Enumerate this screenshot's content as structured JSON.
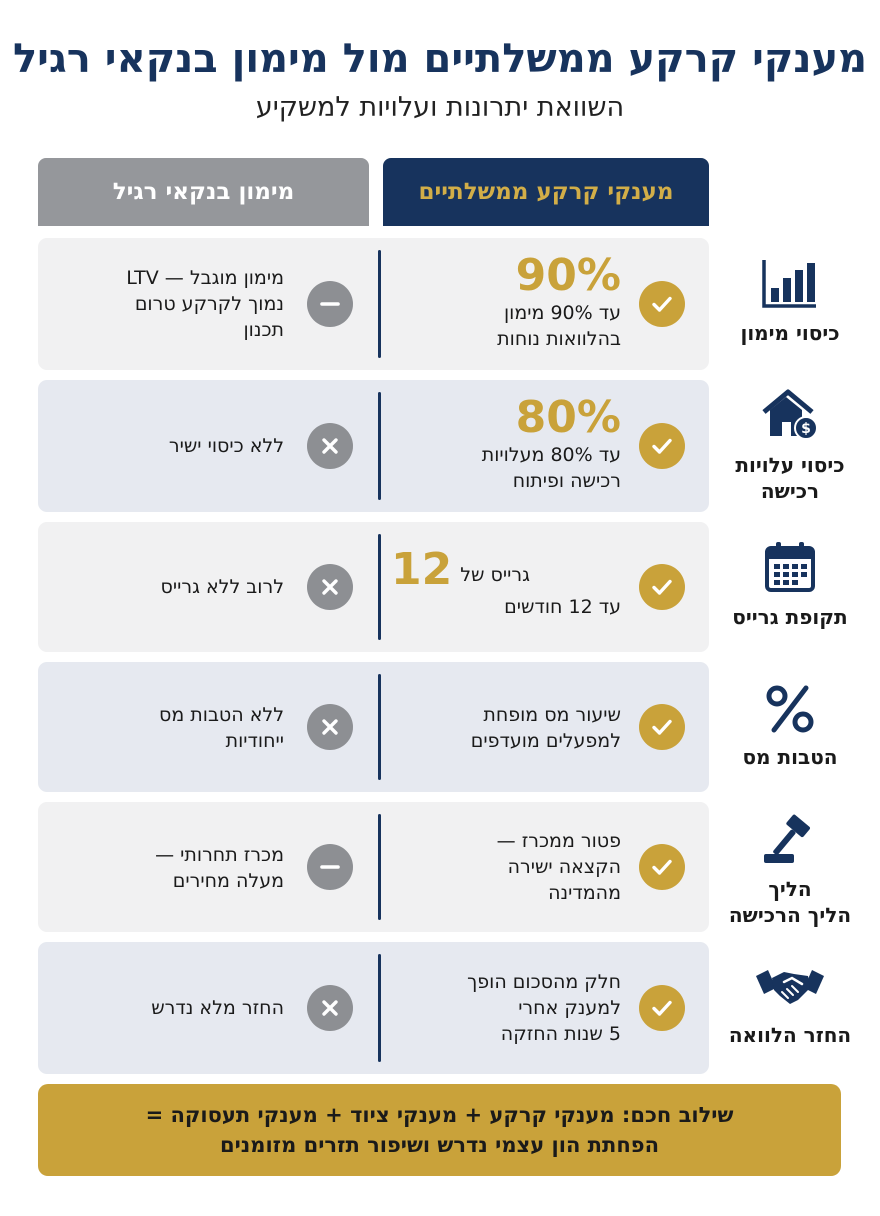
{
  "header": {
    "title": "מענקי קרקע ממשלתיים מול מימון בנקאי רגיל",
    "subtitle": "השוואת יתרונות ועלויות למשקיע"
  },
  "columns": {
    "gov": "מענקי קרקע ממשלתיים",
    "bank": "מימון בנקאי רגיל"
  },
  "rows": [
    {
      "category": "כיסוי מימון",
      "icon": "bar-chart-icon",
      "gov_big": "90%",
      "gov_lines": [
        "עד 90% מימון",
        "בהלוואות נוחות"
      ],
      "bank_mark": "minus",
      "bank_lines": [
        "מימון מוגבל — LTV",
        "נמוך לקרקע טרום",
        "תכנון"
      ]
    },
    {
      "category_lines": [
        "כיסוי עלויות",
        "רכישה"
      ],
      "icon": "house-dollar-icon",
      "gov_big": "80%",
      "gov_lines": [
        "עד 80% מעלויות",
        "רכישה ופיתוח"
      ],
      "bank_mark": "x",
      "bank_lines": [
        "ללא כיסוי ישיר"
      ]
    },
    {
      "category": "תקופת גרייס",
      "icon": "calendar-icon",
      "gov_big": "12",
      "gov_inline": "גרייס של",
      "gov_lines": [
        "עד 12 חודשים"
      ],
      "bank_mark": "x",
      "bank_lines": [
        "לרוב ללא גרייס"
      ]
    },
    {
      "category": "הטבות מס",
      "icon": "percent-icon",
      "gov_lines": [
        "שיעור מס מופחת",
        "למפעלים מועדפים"
      ],
      "bank_mark": "x",
      "bank_lines": [
        "ללא הטבות מס",
        "ייחודיות"
      ]
    },
    {
      "category_lines": [
        "הליך",
        "הליך הרכישה"
      ],
      "icon": "gavel-icon",
      "gov_lines": [
        "פטור ממכרז —",
        "הקצאה ישירה",
        "מהמדינה"
      ],
      "bank_mark": "minus",
      "bank_lines": [
        "מכרז תחרותי —",
        "מעלה מחירים"
      ]
    },
    {
      "category": "החזר הלוואה",
      "icon": "handshake-icon",
      "gov_lines": [
        "חלק מהסכום הופך",
        "למענק אחרי",
        "5 שנות החזקה"
      ],
      "bank_mark": "x",
      "bank_lines": [
        "החזר מלא נדרש"
      ]
    }
  ],
  "footer": {
    "line1": "שילוב חכם: מענקי קרקע + מענקי ציוד + מענקי תעסוקה =",
    "line2": "הפחתת הון עצמי נדרש ושיפור תזרים מזומנים"
  },
  "colors": {
    "navy": "#17335d",
    "gold": "#c9a23a",
    "gray": "#95979b"
  }
}
